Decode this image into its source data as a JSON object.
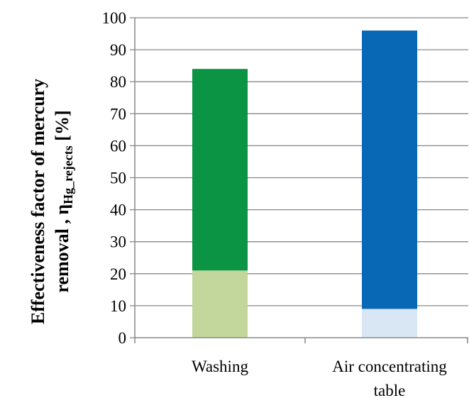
{
  "chart_data": {
    "type": "bar",
    "stacked": true,
    "categories": [
      "Washing",
      "Air concentrating table"
    ],
    "category_label_lines": [
      [
        "Washing"
      ],
      [
        "Air concentrating",
        "table"
      ]
    ],
    "segments": [
      {
        "category": "Washing",
        "lower": 21,
        "upper": 84,
        "color_lower": "#c3d69b",
        "color_upper": "#0a9444"
      },
      {
        "category": "Air concentrating table",
        "lower": 9,
        "upper": 96,
        "color_lower": "#d9e6f3",
        "color_upper": "#0868b5"
      }
    ],
    "ylabel_line1": "Effectiveness factor of mercury",
    "ylabel_line2_prefix": "removal , η",
    "ylabel_line2_sub": "Hg_rejects",
    "ylabel_line2_suffix": " [%]",
    "ylim": [
      0,
      100
    ],
    "yticks": [
      "0",
      "10",
      "20",
      "30",
      "40",
      "50",
      "60",
      "70",
      "80",
      "90",
      "100"
    ],
    "grid": true,
    "legend": "none",
    "gridline_color": "#888888"
  }
}
